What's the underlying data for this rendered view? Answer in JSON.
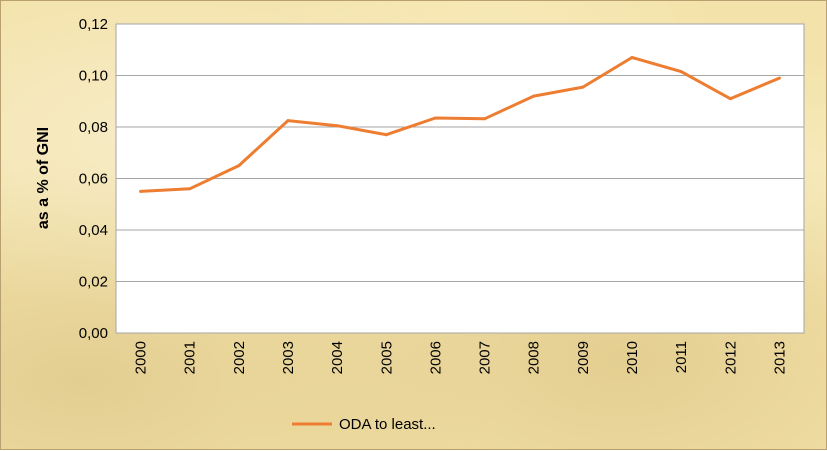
{
  "chart_data": {
    "type": "line",
    "title": "",
    "xlabel": "",
    "ylabel": "as a % of GNI",
    "categories": [
      "2000",
      "2001",
      "2002",
      "2003",
      "2004",
      "2005",
      "2006",
      "2007",
      "2008",
      "2009",
      "2010",
      "2011",
      "2012",
      "2013"
    ],
    "series": [
      {
        "name": "ODA to least...",
        "color": "#ed7d31",
        "values": [
          0.055,
          0.056,
          0.065,
          0.0825,
          0.0805,
          0.077,
          0.0835,
          0.0832,
          0.092,
          0.0955,
          0.107,
          0.1015,
          0.091,
          0.099
        ]
      }
    ],
    "ylim": [
      0,
      0.12
    ],
    "yticks": [
      "0,00",
      "0,02",
      "0,04",
      "0,06",
      "0,08",
      "0,10",
      "0,12"
    ],
    "grid": true,
    "legend_position": "bottom",
    "plot_background": "#ffffff",
    "gridline_color": "#a6a6a6"
  }
}
